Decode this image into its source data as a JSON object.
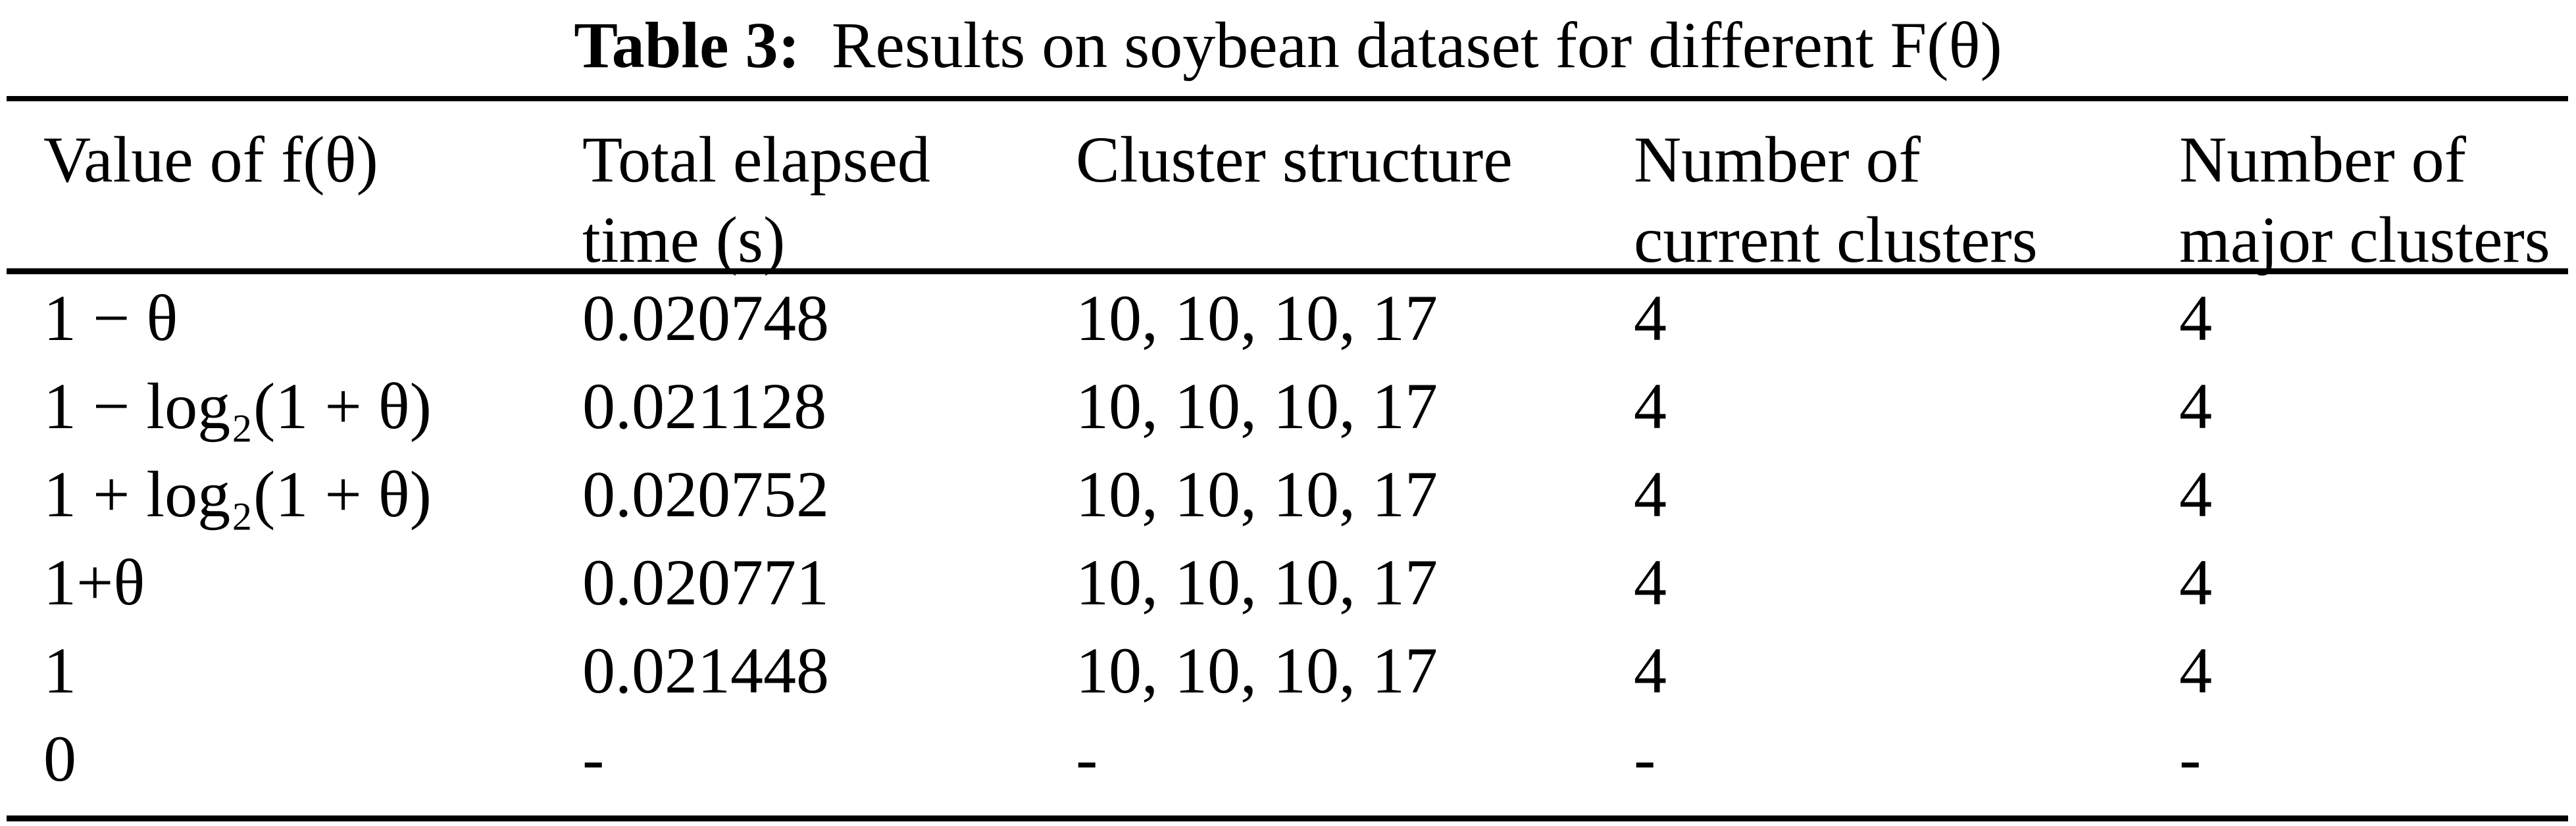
{
  "caption": {
    "label": "Table 3:",
    "text": "Results on soybean dataset for different F(θ)"
  },
  "table": {
    "columns": [
      {
        "header": "Value of f(θ)"
      },
      {
        "header": "Total elapsed\ntime (s)"
      },
      {
        "header": "Cluster structure"
      },
      {
        "header": "Number of\ncurrent clusters"
      },
      {
        "header": "Number of\nmajor clusters"
      }
    ],
    "rows": [
      [
        "1 − θ",
        "0.020748",
        "10, 10, 10, 17",
        "4",
        "4"
      ],
      [
        "1 − log₂(1 + θ)",
        "0.021128",
        "10, 10, 10, 17",
        "4",
        "4"
      ],
      [
        "1 + log₂(1 + θ)",
        "0.020752",
        "10, 10, 10, 17",
        "4",
        "4"
      ],
      [
        "1+θ",
        "0.020771",
        "10, 10, 10, 17",
        "4",
        "4"
      ],
      [
        "1",
        "0.021448",
        "10, 10, 10, 17",
        "4",
        "4"
      ],
      [
        "0",
        "-",
        "-",
        "-",
        "-"
      ]
    ]
  },
  "colors": {
    "text": "#000000",
    "background": "#ffffff",
    "rule": "#000000"
  }
}
